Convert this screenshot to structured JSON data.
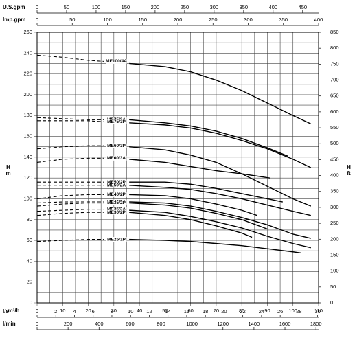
{
  "chart_data": {
    "type": "line",
    "xlim": [
      0,
      110
    ],
    "xticks": [
      0,
      10,
      20,
      30,
      40,
      50,
      60,
      70,
      80,
      90,
      100,
      110
    ],
    "xminorticks": [
      5,
      15,
      25,
      35,
      45,
      55,
      65,
      75,
      85,
      95,
      105
    ],
    "xlabel": "m³/h",
    "ylim": [
      0,
      260
    ],
    "yticks": [
      0,
      20,
      40,
      60,
      80,
      100,
      120,
      140,
      160,
      180,
      200,
      220,
      240,
      260
    ],
    "yminorticks": [
      10,
      30,
      50,
      70,
      90,
      110,
      130,
      150,
      170,
      190,
      210,
      230,
      250
    ],
    "ylabel": [
      "H",
      "m"
    ],
    "y2lim": [
      0,
      850
    ],
    "y2ticks": [
      0,
      50,
      100,
      150,
      200,
      250,
      300,
      350,
      400,
      450,
      500,
      550,
      600,
      650,
      700,
      750,
      800,
      850
    ],
    "y2label": [
      "H",
      "ft"
    ],
    "grid": true,
    "extra_x_axes": [
      {
        "label": "U.S.gpm",
        "position": "top",
        "lim": [
          0,
          477
        ],
        "ticks": [
          0,
          50,
          100,
          150,
          200,
          250,
          300,
          350,
          400,
          450
        ]
      },
      {
        "label": "Imp.gpm",
        "position": "top",
        "lim": [
          0,
          400
        ],
        "ticks": [
          0,
          50,
          100,
          150,
          200,
          250,
          300,
          350,
          400
        ]
      },
      {
        "label": "l/s",
        "position": "bottom",
        "lim": [
          0,
          30.1
        ],
        "ticks": [
          0,
          2,
          4,
          6,
          8,
          10,
          12,
          14,
          16,
          18,
          20,
          22,
          24,
          26,
          28,
          30
        ]
      },
      {
        "label": "l/min",
        "position": "bottom",
        "lim": [
          0,
          1817
        ],
        "ticks": [
          0,
          200,
          400,
          600,
          800,
          1000,
          1200,
          1400,
          1600,
          1800
        ]
      }
    ],
    "series": [
      {
        "name": "ME100/4A",
        "color": "#000000",
        "dash_x": [
          0,
          10,
          20,
          26
        ],
        "dash_values": [
          238,
          236,
          233,
          232
        ],
        "x": [
          36,
          50,
          60,
          70,
          80,
          90,
          100,
          107
        ],
        "values": [
          230,
          227,
          222,
          214,
          204,
          192,
          180,
          172
        ]
      },
      {
        "name": "ME75/3A",
        "color": "#000000",
        "dash_x": [
          0,
          10,
          20,
          26
        ],
        "dash_values": [
          178,
          177,
          176,
          176
        ],
        "x": [
          36,
          50,
          60,
          70,
          80,
          90,
          98
        ],
        "values": [
          176,
          173,
          170,
          165,
          158,
          149,
          141
        ]
      },
      {
        "name": "ME75/3P",
        "color": "#000000",
        "dash_x": [
          0,
          10,
          20,
          26
        ],
        "dash_values": [
          175,
          175,
          175,
          174
        ],
        "x": [
          36,
          50,
          60,
          70,
          80,
          90,
          100,
          107
        ],
        "values": [
          173,
          171,
          168,
          163,
          156,
          148,
          138,
          130
        ]
      },
      {
        "name": "ME60/3P",
        "color": "#000000",
        "dash_x": [
          0,
          10,
          20,
          26
        ],
        "dash_values": [
          148,
          150,
          151,
          151
        ],
        "x": [
          36,
          50,
          60,
          70,
          80,
          90,
          100,
          107
        ],
        "values": [
          150,
          147,
          142,
          135,
          124,
          112,
          100,
          93
        ]
      },
      {
        "name": "ME60/3A",
        "color": "#000000",
        "dash_x": [
          0,
          10,
          20,
          26
        ],
        "dash_values": [
          135,
          138,
          139,
          139
        ],
        "x": [
          36,
          50,
          60,
          70,
          80,
          91
        ],
        "values": [
          138,
          135,
          131,
          127,
          124,
          120
        ]
      },
      {
        "name": "ME50/2P",
        "color": "#000000",
        "dash_x": [
          0,
          10,
          20,
          26
        ],
        "dash_values": [
          116,
          116,
          116,
          116
        ],
        "x": [
          36,
          50,
          60,
          70,
          80,
          90,
          96
        ],
        "values": [
          116,
          116,
          114,
          110,
          105,
          100,
          97
        ]
      },
      {
        "name": "ME50/2A",
        "color": "#000000",
        "dash_x": [
          0,
          10,
          20,
          26
        ],
        "dash_values": [
          113,
          113,
          113,
          113
        ],
        "x": [
          36,
          50,
          60,
          70,
          80,
          90,
          100,
          107
        ],
        "values": [
          113,
          111,
          109,
          105,
          100,
          94,
          88,
          84
        ]
      },
      {
        "name": "ME40/2P",
        "color": "#000000",
        "dash_x": [
          0,
          10,
          20,
          26
        ],
        "dash_values": [
          100,
          103,
          104,
          104
        ],
        "x": [
          36,
          50,
          60,
          70,
          80,
          86
        ],
        "values": [
          104,
          103,
          100,
          95,
          89,
          84
        ]
      },
      {
        "name": "ME40/2A",
        "color": "#000000",
        "dash_x": [
          0,
          10,
          20,
          26
        ],
        "dash_values": [
          96,
          97,
          97,
          97
        ],
        "x": [
          36,
          50,
          60,
          70,
          80,
          90,
          100,
          107
        ],
        "values": [
          97,
          96,
          93,
          88,
          82,
          75,
          66,
          62
        ]
      },
      {
        "name": "ME35/2P",
        "color": "#000000",
        "dash_x": [
          0,
          10,
          20,
          26
        ],
        "dash_values": [
          93,
          95,
          96,
          96
        ],
        "x": [
          36,
          50,
          60,
          70,
          80,
          90
        ],
        "values": [
          96,
          94,
          91,
          86,
          80,
          71
        ]
      },
      {
        "name": "ME35/2A",
        "color": "#000000",
        "dash_x": [
          0,
          10,
          20,
          26
        ],
        "dash_values": [
          88,
          89,
          90,
          90
        ],
        "x": [
          36,
          50,
          60,
          70,
          80,
          90,
          100,
          107
        ],
        "values": [
          89,
          87,
          83,
          78,
          72,
          64,
          57,
          53
        ]
      },
      {
        "name": "ME30/2P",
        "color": "#000000",
        "dash_x": [
          0,
          10,
          20,
          26
        ],
        "dash_values": [
          84,
          86,
          87,
          87
        ],
        "x": [
          36,
          50,
          60,
          70,
          80,
          84
        ],
        "values": [
          87,
          84,
          80,
          74,
          67,
          63
        ]
      },
      {
        "name": "ME25/1P",
        "color": "#000000",
        "dash_x": [
          0,
          10,
          20,
          26
        ],
        "dash_values": [
          59,
          60,
          61,
          61
        ],
        "x": [
          36,
          50,
          60,
          70,
          80,
          90,
          100,
          103
        ],
        "values": [
          61,
          60,
          59,
          57,
          55,
          52,
          49,
          48
        ]
      }
    ]
  }
}
